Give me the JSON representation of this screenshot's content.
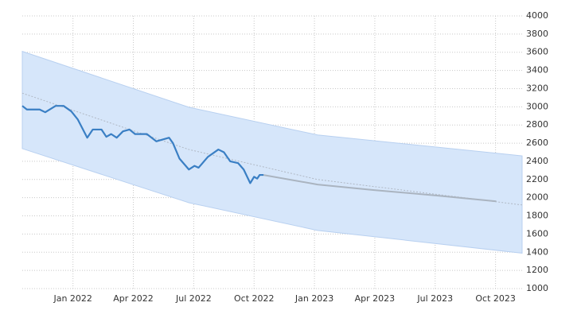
{
  "chart_data": {
    "type": "line",
    "ylim": [
      1000,
      4000
    ],
    "yticks": [
      1000,
      1200,
      1400,
      1600,
      1800,
      2000,
      2200,
      2400,
      2600,
      2800,
      3000,
      3200,
      3400,
      3600,
      3800,
      4000
    ],
    "xlim": [
      2021.79,
      2023.86
    ],
    "xticks": [
      {
        "value": 2022,
        "label": "Jan 2022"
      },
      {
        "value": 2022.25,
        "label": "Apr 2022"
      },
      {
        "value": 2022.5,
        "label": "Jul 2022"
      },
      {
        "value": 2022.75,
        "label": "Oct 2022"
      },
      {
        "value": 2023,
        "label": "Jan 2023"
      },
      {
        "value": 2023.25,
        "label": "Apr 2023"
      },
      {
        "value": 2023.5,
        "label": "Jul 2023"
      },
      {
        "value": 2023.75,
        "label": "Oct 2023"
      }
    ],
    "grid": true,
    "band": {
      "color": "#d6e6fa",
      "x": [
        2021.79,
        2022.48,
        2023.013,
        2023.86
      ],
      "upper": [
        3610,
        2995,
        2690,
        2460
      ],
      "lower": [
        2540,
        1945,
        1640,
        1390
      ]
    },
    "trend": {
      "color": "#b0b8c4",
      "x": [
        2021.79,
        2022.48,
        2023.013,
        2023.86
      ],
      "values": [
        3150,
        2530,
        2200,
        1920
      ]
    },
    "forecast": {
      "color": "#aab4c0",
      "x": [
        2022.789,
        2023.013,
        2023.243,
        2023.507,
        2023.753
      ],
      "values": [
        2250,
        2145,
        2085,
        2023,
        1960
      ]
    },
    "actual": {
      "color": "#3a7fc4",
      "x": [
        2021.79,
        2021.809,
        2021.862,
        2021.885,
        2021.928,
        2021.961,
        2021.993,
        2022.02,
        2022.059,
        2022.082,
        2022.118,
        2022.138,
        2022.158,
        2022.181,
        2022.207,
        2022.234,
        2022.257,
        2022.306,
        2022.345,
        2022.372,
        2022.398,
        2022.414,
        2022.441,
        2022.48,
        2022.503,
        2022.52,
        2022.559,
        2022.602,
        2022.625,
        2022.651,
        2022.684,
        2022.707,
        2022.734,
        2022.75,
        2022.763,
        2022.773,
        2022.789
      ],
      "values": [
        3010,
        2970,
        2970,
        2940,
        3010,
        3010,
        2950,
        2860,
        2660,
        2750,
        2750,
        2670,
        2700,
        2660,
        2730,
        2750,
        2700,
        2700,
        2620,
        2640,
        2660,
        2600,
        2430,
        2310,
        2350,
        2330,
        2450,
        2530,
        2500,
        2400,
        2380,
        2310,
        2160,
        2230,
        2210,
        2250,
        2250
      ]
    }
  }
}
